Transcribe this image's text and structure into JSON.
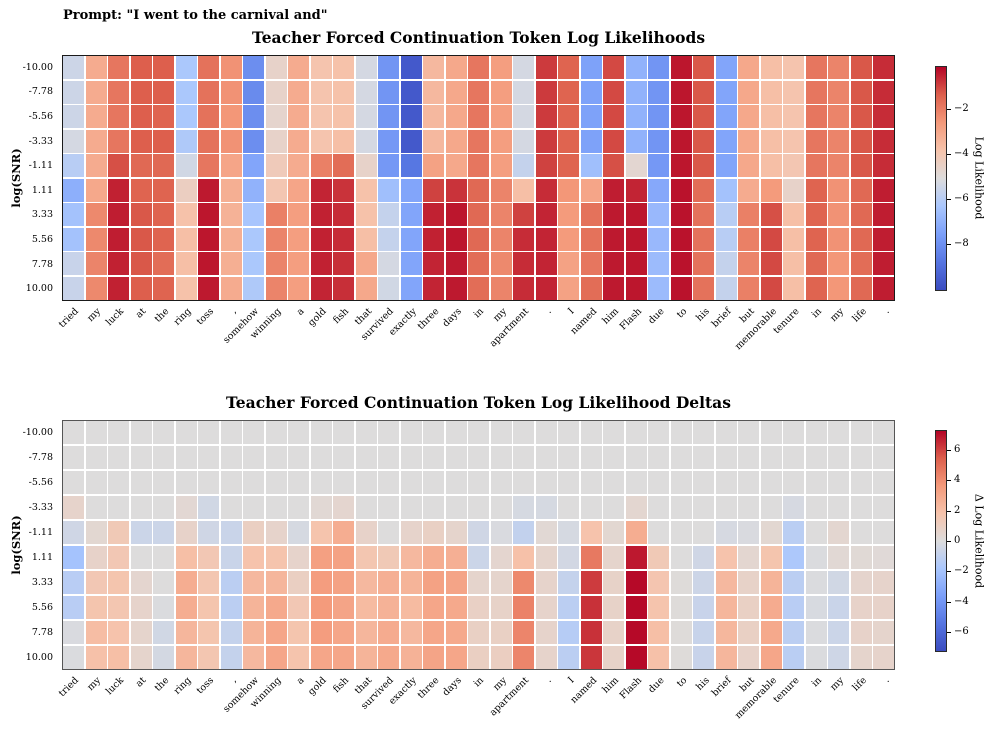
{
  "prompt": "Prompt: \"I went to the carnival and\"",
  "ylabel": "log(SNR)",
  "snr_labels": [
    "-10.00",
    "-7.78",
    "-5.56",
    "-3.33",
    "-1.11",
    "1.11",
    "3.33",
    "5.56",
    "7.78",
    "10.00"
  ],
  "tokens": [
    "tried",
    "my",
    "luck",
    "at",
    "the",
    "ring",
    "toss",
    ",",
    "somehow",
    "winning",
    "a",
    "gold",
    "fish",
    "that",
    "survived",
    "exactly",
    "three",
    "days",
    "in",
    "my",
    "apartment",
    ".",
    "I",
    "named",
    "him",
    "Flash",
    "due",
    "to",
    "his",
    "brief",
    "but",
    "memorable",
    "tenure",
    "in",
    "my",
    "life",
    "."
  ],
  "colormap": [
    "#3b4cc0",
    "#5675e1",
    "#7b9ff9",
    "#aac7fd",
    "#dddcdc",
    "#f6c3ab",
    "#f49a7b",
    "#dd604d",
    "#b40426"
  ],
  "chart_data": [
    {
      "type": "heatmap",
      "title": "Teacher Forced Continuation Token Log Likelihoods",
      "xlabel": "",
      "ylabel": "log(SNR)",
      "y_tick_labels": [
        "-10.00",
        "-7.78",
        "-5.56",
        "-3.33",
        "-1.11",
        "1.11",
        "3.33",
        "5.56",
        "7.78",
        "10.00"
      ],
      "x_tick_labels": [
        "tried",
        "my",
        "luck",
        "at",
        "the",
        "ring",
        "toss",
        ",",
        "somehow",
        "winning",
        "a",
        "gold",
        "fish",
        "that",
        "survived",
        "exactly",
        "three",
        "days",
        "in",
        "my",
        "apartment",
        ".",
        "I",
        "named",
        "him",
        "Flash",
        "due",
        "to",
        "his",
        "brief",
        "but",
        "memorable",
        "tenure",
        "in",
        "my",
        "life",
        "."
      ],
      "colorbar": {
        "label": "Log Likelihood",
        "ticks": [
          -2,
          -4,
          -6,
          -8
        ],
        "tick_labels": [
          "−2",
          "−4",
          "−6",
          "−8"
        ]
      },
      "vmin": -10.1,
      "vmax": -0.06,
      "rows": [
        [
          -5.5,
          -3.1,
          -1.8,
          -1.3,
          -1.3,
          -6.3,
          -1.7,
          -2.4,
          -8.1,
          -4.6,
          -3.1,
          -3.9,
          -3.8,
          -5.3,
          -7.9,
          -9.7,
          -3.5,
          -3.0,
          -1.8,
          -2.7,
          -5.3,
          -0.8,
          -1.4,
          -7.5,
          -1.0,
          -7.0,
          -7.9,
          -0.3,
          -1.2,
          -7.4,
          -3.0,
          -3.7,
          -3.9,
          -1.8,
          -2.1,
          -1.2,
          -0.6
        ],
        [
          -5.5,
          -3.1,
          -1.8,
          -1.3,
          -1.3,
          -6.3,
          -1.7,
          -2.4,
          -8.2,
          -4.6,
          -3.1,
          -3.9,
          -3.8,
          -5.3,
          -7.9,
          -9.7,
          -3.5,
          -3.0,
          -1.8,
          -2.7,
          -5.3,
          -0.8,
          -1.4,
          -7.5,
          -1.0,
          -7.0,
          -7.9,
          -0.3,
          -1.2,
          -7.4,
          -3.0,
          -3.7,
          -3.9,
          -1.8,
          -2.1,
          -1.2,
          -0.6
        ],
        [
          -5.5,
          -3.1,
          -1.8,
          -1.3,
          -1.4,
          -6.3,
          -1.7,
          -2.5,
          -8.1,
          -4.7,
          -3.1,
          -3.9,
          -3.8,
          -5.3,
          -7.9,
          -9.7,
          -3.5,
          -3.0,
          -1.8,
          -2.7,
          -5.3,
          -0.8,
          -1.4,
          -7.5,
          -1.0,
          -7.0,
          -7.9,
          -0.3,
          -1.2,
          -7.4,
          -3.0,
          -3.7,
          -3.9,
          -1.8,
          -2.1,
          -1.2,
          -0.6
        ],
        [
          -5.3,
          -3.1,
          -1.8,
          -1.3,
          -1.3,
          -6.2,
          -1.7,
          -2.4,
          -8.1,
          -4.6,
          -3.1,
          -3.9,
          -3.7,
          -5.3,
          -7.8,
          -9.7,
          -3.5,
          -3.0,
          -1.8,
          -2.7,
          -5.3,
          -0.8,
          -1.4,
          -7.5,
          -1.0,
          -7.0,
          -7.9,
          -0.3,
          -1.2,
          -7.4,
          -3.0,
          -3.7,
          -3.9,
          -1.8,
          -2.1,
          -1.2,
          -0.6
        ],
        [
          -6.0,
          -3.1,
          -1.1,
          -1.5,
          -1.5,
          -5.4,
          -1.8,
          -2.9,
          -7.4,
          -4.2,
          -3.1,
          -2.0,
          -1.6,
          -4.6,
          -7.8,
          -8.8,
          -2.8,
          -3.0,
          -1.8,
          -2.7,
          -5.7,
          -0.9,
          -1.4,
          -6.6,
          -1.1,
          -4.8,
          -7.8,
          -0.3,
          -1.2,
          -7.4,
          -3.0,
          -3.7,
          -4.0,
          -1.8,
          -2.1,
          -1.2,
          -0.6
        ],
        [
          -7.1,
          -3.0,
          -0.45,
          -1.4,
          -1.4,
          -4.4,
          -0.35,
          -3.2,
          -7.0,
          -4.0,
          -2.9,
          -0.5,
          -0.7,
          -3.8,
          -6.6,
          -7.4,
          -0.9,
          -0.7,
          -1.5,
          -2.1,
          -3.7,
          -0.6,
          -2.5,
          -2.9,
          -0.4,
          -0.5,
          -7.3,
          -0.25,
          -1.6,
          -6.5,
          -3.1,
          -2.6,
          -4.6,
          -1.4,
          -2.4,
          -1.5,
          -0.4
        ],
        [
          -6.5,
          -2.2,
          -0.4,
          -1.2,
          -1.4,
          -3.8,
          -0.3,
          -3.3,
          -6.4,
          -2.0,
          -2.7,
          -0.45,
          -0.6,
          -3.8,
          -5.7,
          -7.4,
          -0.45,
          -0.3,
          -1.5,
          -2.1,
          -0.9,
          -0.5,
          -2.6,
          -1.7,
          -0.35,
          -0.3,
          -6.8,
          -0.25,
          -1.7,
          -6.0,
          -2.0,
          -1.1,
          -3.7,
          -1.4,
          -2.4,
          -1.5,
          -0.4
        ],
        [
          -6.5,
          -2.2,
          -0.4,
          -1.2,
          -1.4,
          -3.7,
          -0.3,
          -3.2,
          -6.3,
          -2.1,
          -2.7,
          -0.45,
          -0.6,
          -3.7,
          -5.7,
          -7.4,
          -0.45,
          -0.3,
          -1.5,
          -2.1,
          -0.6,
          -0.5,
          -2.6,
          -1.7,
          -0.35,
          -0.3,
          -6.8,
          -0.25,
          -1.7,
          -6.0,
          -2.0,
          -1.0,
          -3.7,
          -1.4,
          -2.4,
          -1.5,
          -0.4
        ],
        [
          -5.6,
          -2.1,
          -0.45,
          -1.2,
          -1.6,
          -3.7,
          -0.3,
          -3.2,
          -6.3,
          -2.1,
          -2.7,
          -0.45,
          -0.65,
          -3.0,
          -5.3,
          -7.4,
          -0.5,
          -0.35,
          -1.6,
          -2.2,
          -0.6,
          -0.5,
          -2.8,
          -1.8,
          -0.35,
          -0.3,
          -6.7,
          -0.25,
          -1.7,
          -5.7,
          -2.1,
          -1.0,
          -3.7,
          -1.5,
          -2.5,
          -1.6,
          -0.4
        ],
        [
          -5.6,
          -2.2,
          -0.45,
          -1.3,
          -1.4,
          -3.8,
          -0.35,
          -3.1,
          -6.2,
          -2.1,
          -2.7,
          -0.5,
          -0.65,
          -3.0,
          -5.4,
          -7.4,
          -0.5,
          -0.35,
          -1.6,
          -2.1,
          -0.6,
          -0.5,
          -2.8,
          -1.6,
          -0.35,
          -0.3,
          -6.7,
          -0.25,
          -1.7,
          -5.7,
          -2.0,
          -1.0,
          -3.7,
          -1.4,
          -2.5,
          -1.5,
          -0.4
        ]
      ]
    },
    {
      "type": "heatmap",
      "title": "Teacher Forced Continuation Token Log Likelihood Deltas",
      "xlabel": "",
      "ylabel": "log(SNR)",
      "y_tick_labels": [
        "-10.00",
        "-7.78",
        "-5.56",
        "-3.33",
        "-1.11",
        "1.11",
        "3.33",
        "5.56",
        "7.78",
        "10.00"
      ],
      "x_tick_labels": [
        "tried",
        "my",
        "luck",
        "at",
        "the",
        "ring",
        "toss",
        ",",
        "somehow",
        "winning",
        "a",
        "gold",
        "fish",
        "that",
        "survived",
        "exactly",
        "three",
        "days",
        "in",
        "my",
        "apartment",
        ".",
        "I",
        "named",
        "him",
        "Flash",
        "due",
        "to",
        "his",
        "brief",
        "but",
        "memorable",
        "tenure",
        "in",
        "my",
        "life",
        "."
      ],
      "colorbar": {
        "label": "Δ Log Likelihood",
        "ticks": [
          6,
          4,
          2,
          0,
          -2,
          -4,
          -6
        ],
        "tick_labels": [
          "6",
          "4",
          "2",
          "0",
          "−2",
          "−4",
          "−6"
        ]
      },
      "vmin": -7.3,
      "vmax": 7.3,
      "rows": [
        [
          0,
          0,
          0,
          0,
          0,
          0,
          0,
          0,
          0,
          0,
          0,
          0,
          0,
          0,
          0,
          0,
          0,
          0,
          0,
          0,
          0,
          0,
          0,
          0,
          0,
          0,
          0,
          0,
          0,
          0,
          0,
          0,
          0,
          0,
          0,
          0,
          0
        ],
        [
          0,
          0,
          0,
          0,
          0,
          0,
          0,
          0,
          0,
          0,
          0,
          0,
          0,
          0,
          0,
          0,
          0,
          0,
          0,
          0,
          0,
          0,
          0,
          0,
          0,
          0,
          0,
          0,
          0,
          0,
          0,
          0,
          0,
          0,
          0,
          0,
          0
        ],
        [
          0,
          0,
          0,
          0,
          0,
          0,
          0,
          0,
          0,
          0,
          0,
          0,
          0,
          0,
          0,
          0,
          0,
          0,
          0,
          0,
          0,
          0,
          0,
          0,
          0,
          0,
          0,
          0,
          0,
          0,
          0,
          0,
          0,
          0,
          0,
          0,
          0
        ],
        [
          0.65,
          0,
          0,
          0,
          0,
          0.35,
          -0.45,
          0,
          0,
          0,
          0,
          0.3,
          0.5,
          0,
          0,
          0,
          0,
          0,
          0,
          0,
          -0.3,
          -0.3,
          0,
          0,
          0,
          0.45,
          0,
          0,
          0,
          0,
          0,
          0,
          -0.25,
          0,
          0,
          0,
          0
        ],
        [
          -0.5,
          0.4,
          1.4,
          -0.65,
          -0.65,
          0.7,
          -0.5,
          -0.7,
          0.95,
          0.65,
          -0.3,
          1.75,
          2.8,
          0.7,
          0,
          0.65,
          0.9,
          0.6,
          -0.5,
          -0.15,
          -0.95,
          0.3,
          -0.3,
          1.8,
          0.4,
          2.8,
          0,
          0,
          0,
          -0.25,
          -0.15,
          0.4,
          -1.25,
          0,
          0.45,
          0,
          0
        ],
        [
          -2.0,
          0.7,
          1.5,
          0,
          0,
          2.0,
          1.5,
          -0.7,
          1.8,
          1.75,
          0.65,
          3.4,
          3.3,
          1.6,
          1.4,
          2.3,
          2.8,
          2.7,
          -0.65,
          0.5,
          1.9,
          0.6,
          -0.4,
          4.7,
          0.6,
          6.9,
          1.4,
          0,
          -0.5,
          1.8,
          0.45,
          1.7,
          -1.7,
          -0.1,
          0.3,
          0.25,
          0.2
        ],
        [
          -1.3,
          1.5,
          1.7,
          0.5,
          0,
          2.8,
          1.6,
          -1.2,
          2.3,
          2.4,
          0.95,
          3.5,
          3.3,
          2.3,
          2.7,
          2.5,
          3.3,
          3.2,
          0.6,
          0.6,
          4.2,
          0.65,
          -0.9,
          6.2,
          0.75,
          7.2,
          1.65,
          0.1,
          -0.6,
          2.3,
          0.75,
          2.5,
          -1.2,
          -0.1,
          -0.45,
          0.55,
          0.65
        ],
        [
          -1.3,
          1.7,
          1.6,
          0.65,
          -0.1,
          2.8,
          1.7,
          -1.2,
          2.5,
          3.0,
          1.5,
          3.6,
          3.2,
          2.2,
          2.6,
          2.2,
          3.1,
          3.0,
          0.85,
          0.75,
          4.4,
          0.65,
          -1.2,
          6.4,
          0.75,
          7.2,
          1.75,
          0.1,
          -0.75,
          2.4,
          0.9,
          2.9,
          -1.3,
          -0.2,
          -0.7,
          0.7,
          0.7
        ],
        [
          -0.15,
          2.1,
          1.8,
          0.6,
          -0.45,
          2.4,
          1.7,
          -0.9,
          2.5,
          3.1,
          1.7,
          3.5,
          3.1,
          2.4,
          2.9,
          2.3,
          3.1,
          3.0,
          0.9,
          0.9,
          4.3,
          0.65,
          -1.4,
          6.4,
          0.75,
          7.2,
          2.0,
          0.1,
          -0.8,
          2.35,
          0.9,
          3.0,
          -1.2,
          -0.1,
          -0.65,
          0.7,
          0.6
        ],
        [
          -0.1,
          1.9,
          2.0,
          0.6,
          -0.35,
          2.4,
          1.6,
          -0.9,
          2.3,
          3.1,
          1.75,
          3.1,
          3.1,
          2.5,
          3.0,
          2.6,
          3.2,
          3.1,
          0.95,
          1.0,
          4.3,
          0.65,
          -1.2,
          6.3,
          0.75,
          7.2,
          1.9,
          0.1,
          -0.75,
          2.4,
          0.7,
          3.1,
          -1.25,
          -0.1,
          -0.55,
          0.6,
          0.65
        ]
      ]
    }
  ]
}
